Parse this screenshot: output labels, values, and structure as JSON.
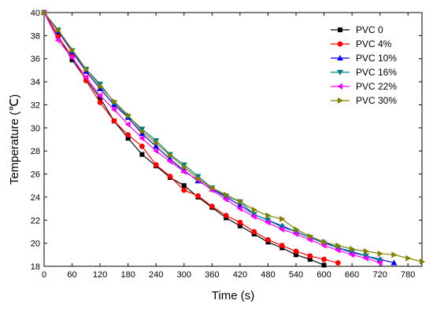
{
  "chart_data": {
    "type": "line",
    "xlabel": "Time (s)",
    "ylabel": "Temperature (℃)",
    "xlim": [
      0,
      810
    ],
    "ylim": [
      18,
      40
    ],
    "xticks": [
      0,
      60,
      120,
      180,
      240,
      300,
      360,
      420,
      480,
      540,
      600,
      660,
      720,
      780
    ],
    "yticks": [
      18,
      20,
      22,
      24,
      26,
      28,
      30,
      32,
      34,
      36,
      38,
      40
    ],
    "legend_position": "top-right",
    "grid": false,
    "series": [
      {
        "name": "PVC 0",
        "color": "#000000",
        "marker": "square",
        "x": [
          0,
          30,
          60,
          90,
          120,
          150,
          180,
          210,
          240,
          270,
          300,
          330,
          360,
          390,
          420,
          450,
          480,
          510,
          540,
          570,
          600
        ],
        "y": [
          40,
          38.0,
          35.9,
          34.2,
          32.6,
          30.6,
          29.1,
          27.7,
          26.7,
          25.7,
          25.0,
          24.0,
          23.1,
          22.2,
          21.5,
          20.8,
          20.1,
          19.6,
          19.0,
          18.6,
          18.1
        ]
      },
      {
        "name": "PVC 4%",
        "color": "#ff0000",
        "marker": "circle",
        "x": [
          0,
          30,
          60,
          90,
          120,
          150,
          180,
          210,
          240,
          270,
          300,
          330,
          360,
          390,
          420,
          450,
          480,
          510,
          540,
          570,
          600,
          630
        ],
        "y": [
          40,
          37.9,
          36.2,
          34.1,
          32.2,
          30.6,
          29.4,
          28.4,
          26.8,
          25.8,
          24.6,
          24.1,
          23.2,
          22.4,
          21.8,
          21.0,
          20.3,
          19.8,
          19.3,
          18.9,
          18.6,
          18.3
        ]
      },
      {
        "name": "PVC 10%",
        "color": "#0000ff",
        "marker": "triangle-up",
        "x": [
          0,
          30,
          60,
          90,
          120,
          150,
          180,
          210,
          240,
          270,
          300,
          330,
          360,
          390,
          420,
          450,
          480,
          510,
          540,
          570,
          600,
          630,
          660,
          690,
          720,
          750
        ],
        "y": [
          40,
          38.4,
          36.6,
          34.9,
          33.4,
          32.0,
          30.9,
          29.5,
          28.4,
          27.3,
          26.3,
          25.4,
          24.7,
          24.0,
          23.3,
          22.5,
          22.0,
          21.5,
          21.0,
          20.5,
          20.1,
          19.6,
          19.2,
          18.9,
          18.6,
          18.3
        ]
      },
      {
        "name": "PVC 16%",
        "color": "#008080",
        "marker": "triangle-down",
        "x": [
          0,
          30,
          60,
          90,
          120,
          150,
          180,
          210,
          240,
          270,
          300,
          330,
          360,
          390,
          420,
          450,
          480,
          510,
          540,
          570,
          600,
          630,
          660,
          690,
          720
        ],
        "y": [
          40,
          38.5,
          36.7,
          35.1,
          33.8,
          32.2,
          31.0,
          29.9,
          28.9,
          27.7,
          26.8,
          25.8,
          24.8,
          24.1,
          23.6,
          22.5,
          22.0,
          21.4,
          21.0,
          20.5,
          20.0,
          19.6,
          19.3,
          18.9,
          18.5
        ]
      },
      {
        "name": "PVC 22%",
        "color": "#ff00ff",
        "marker": "triangle-left",
        "x": [
          0,
          30,
          60,
          90,
          120,
          150,
          180,
          210,
          240,
          270,
          300,
          330,
          360,
          390,
          420,
          450,
          480,
          510,
          540,
          570,
          600,
          630,
          660,
          690,
          720
        ],
        "y": [
          40,
          37.6,
          36.1,
          34.4,
          32.8,
          31.6,
          30.3,
          29.1,
          28.0,
          27.1,
          26.2,
          25.5,
          24.6,
          23.8,
          23.0,
          22.3,
          21.8,
          21.2,
          20.8,
          20.3,
          19.8,
          19.4,
          19.0,
          18.7,
          18.3
        ]
      },
      {
        "name": "PVC 30%",
        "color": "#808000",
        "marker": "triangle-right",
        "x": [
          0,
          30,
          60,
          90,
          120,
          150,
          180,
          210,
          240,
          270,
          300,
          330,
          360,
          390,
          420,
          450,
          480,
          510,
          540,
          570,
          600,
          630,
          660,
          690,
          720,
          750,
          780,
          810
        ],
        "y": [
          40,
          38.5,
          36.8,
          35.1,
          33.6,
          32.3,
          31.1,
          29.7,
          28.7,
          27.6,
          26.6,
          25.6,
          24.8,
          24.2,
          23.6,
          22.9,
          22.4,
          22.1,
          21.2,
          20.6,
          20.1,
          19.8,
          19.5,
          19.3,
          19.1,
          19.0,
          18.7,
          18.4
        ]
      }
    ]
  }
}
